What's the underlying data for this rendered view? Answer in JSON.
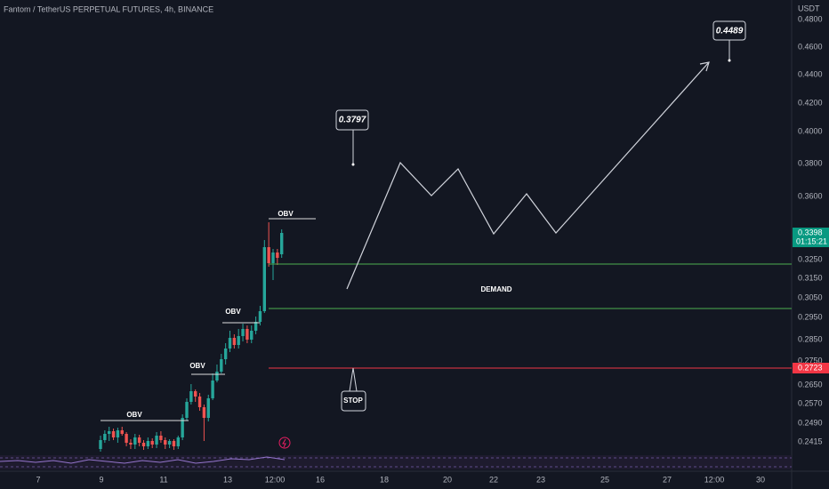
{
  "header": {
    "title": "Fantom / TetherUS PERPETUAL FUTURES, 4h, BINANCE",
    "currency": "USDT"
  },
  "price_axis": {
    "labels": [
      "0.4800",
      "0.4600",
      "0.4400",
      "0.4200",
      "0.4000",
      "0.3800",
      "0.3600",
      "0.3250",
      "0.3150",
      "0.3050",
      "0.2950",
      "0.2850",
      "0.2750",
      "0.2650",
      "0.2570",
      "0.2490",
      "0.2415"
    ]
  },
  "current_price": {
    "price": "0.3398",
    "countdown": "01:15:21"
  },
  "stop_price": "0.2723",
  "time_axis": {
    "labels": [
      "7",
      "9",
      "11",
      "13",
      "12:00",
      "16",
      "18",
      "20",
      "22",
      "23",
      "25",
      "27",
      "12:00",
      "30"
    ]
  },
  "annotations": {
    "target_1": "0.3797",
    "target_2": "0.4489",
    "demand": "DEMAND",
    "stop": "STOP",
    "obv": [
      "OBV",
      "OBV",
      "OBV",
      "OBV"
    ]
  }
}
